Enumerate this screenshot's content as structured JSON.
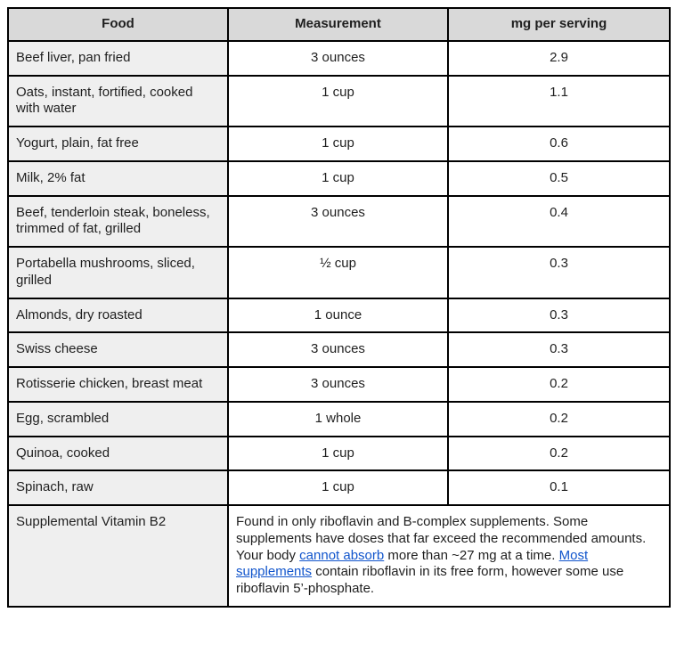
{
  "colors": {
    "header_bg": "#d9d9d9",
    "food_column_bg": "#efefef",
    "border": "#000000",
    "link": "#1155cc",
    "text": "#1f1f1f"
  },
  "table": {
    "headers": [
      "Food",
      "Measurement",
      "mg per serving"
    ],
    "rows": [
      {
        "food": "Beef liver, pan fried",
        "measurement": "3 ounces",
        "mg": "2.9"
      },
      {
        "food": "Oats, instant, fortified, cooked with water",
        "measurement": "1 cup",
        "mg": "1.1"
      },
      {
        "food": "Yogurt, plain, fat free",
        "measurement": "1 cup",
        "mg": "0.6"
      },
      {
        "food": "Milk, 2% fat",
        "measurement": "1 cup",
        "mg": "0.5"
      },
      {
        "food": "Beef, tenderloin steak, boneless, trimmed of fat, grilled",
        "measurement": "3 ounces",
        "mg": "0.4"
      },
      {
        "food": "Portabella mushrooms, sliced, grilled",
        "measurement": "½ cup",
        "mg": "0.3"
      },
      {
        "food": "Almonds, dry roasted",
        "measurement": "1 ounce",
        "mg": "0.3"
      },
      {
        "food": "Swiss cheese",
        "measurement": "3 ounces",
        "mg": "0.3"
      },
      {
        "food": "Rotisserie chicken, breast meat",
        "measurement": "3 ounces",
        "mg": "0.2"
      },
      {
        "food": "Egg, scrambled",
        "measurement": "1 whole",
        "mg": "0.2"
      },
      {
        "food": "Quinoa, cooked",
        "measurement": "1 cup",
        "mg": "0.2"
      },
      {
        "food": "Spinach, raw",
        "measurement": "1 cup",
        "mg": "0.1"
      }
    ],
    "supplement_row": {
      "food": "Supplemental Vitamin B2",
      "note_segments": [
        {
          "text": "Found in only riboflavin and B-complex supplements. Some supplements have doses that far exceed the recommended amounts. Your body ",
          "link": false
        },
        {
          "text": "cannot absorb",
          "link": true
        },
        {
          "text": " more than ~27 mg at a time. ",
          "link": false
        },
        {
          "text": "Most supplements",
          "link": true
        },
        {
          "text": " contain riboflavin in its free form, however some use riboflavin 5’-phosphate.",
          "link": false
        }
      ]
    }
  }
}
